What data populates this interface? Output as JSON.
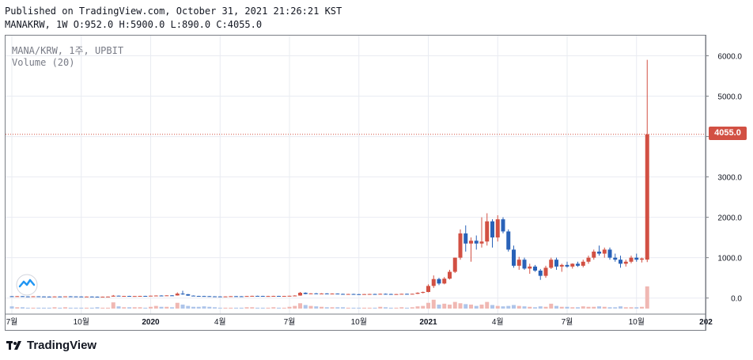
{
  "header": {
    "published": "Published on TradingView.com, October 31, 2021 21:26:21 KST",
    "ohlc": "MANAKRW, 1W O:952.0 H:5900.0 L:890.0 C:4055.0"
  },
  "legend": {
    "symbol": "MANA/KRW, 1주, UPBIT",
    "volume": "Volume (20)"
  },
  "brand": {
    "name": "TradingView"
  },
  "colors": {
    "up": "#d25043",
    "down": "#2962b8",
    "vol_up": "#f0b8b3",
    "vol_down": "#aec5ea",
    "grid": "#e9ecf2",
    "price_line": "#d25043"
  },
  "chart_data": {
    "type": "candlestick",
    "symbol": "MANA/KRW",
    "interval": "1W",
    "exchange": "UPBIT",
    "last_price": 4055.0,
    "last_price_label": "4055.0",
    "y_axis": {
      "ticks": [
        0.0,
        1000.0,
        2000.0,
        3000.0,
        4000.0,
        5000.0,
        6000.0
      ],
      "tick_labels": [
        "0.0",
        "1000.0",
        "2000.0",
        "3000.0",
        "4000.0",
        "5000.0",
        "6000.0"
      ],
      "range": [
        -300,
        6500
      ]
    },
    "x_axis": {
      "labels": [
        {
          "label": "7월",
          "week": 0,
          "bold": false
        },
        {
          "label": "10월",
          "week": 13,
          "bold": false
        },
        {
          "label": "2020",
          "week": 26,
          "bold": true
        },
        {
          "label": "4월",
          "week": 39,
          "bold": false
        },
        {
          "label": "7월",
          "week": 52,
          "bold": false
        },
        {
          "label": "10월",
          "week": 65,
          "bold": false
        },
        {
          "label": "2021",
          "week": 78,
          "bold": true
        },
        {
          "label": "4월",
          "week": 91,
          "bold": false
        },
        {
          "label": "7월",
          "week": 104,
          "bold": false
        },
        {
          "label": "10월",
          "week": 117,
          "bold": false
        },
        {
          "label": "202",
          "week": 130,
          "bold": true
        }
      ]
    },
    "candles": [
      [
        45,
        48,
        38,
        42,
        5
      ],
      [
        42,
        50,
        40,
        46,
        3
      ],
      [
        46,
        47,
        38,
        40,
        3
      ],
      [
        40,
        44,
        36,
        38,
        2
      ],
      [
        38,
        45,
        36,
        43,
        2
      ],
      [
        43,
        44,
        37,
        39,
        2
      ],
      [
        39,
        42,
        36,
        37,
        2
      ],
      [
        37,
        40,
        34,
        35,
        2
      ],
      [
        35,
        41,
        33,
        39,
        3
      ],
      [
        39,
        40,
        34,
        36,
        2
      ],
      [
        36,
        44,
        35,
        42,
        3
      ],
      [
        42,
        47,
        38,
        40,
        2
      ],
      [
        40,
        43,
        36,
        38,
        2
      ],
      [
        38,
        41,
        33,
        35,
        2
      ],
      [
        35,
        39,
        32,
        37,
        2
      ],
      [
        37,
        40,
        33,
        34,
        2
      ],
      [
        34,
        37,
        28,
        31,
        3
      ],
      [
        31,
        36,
        29,
        34,
        2
      ],
      [
        34,
        38,
        32,
        36,
        2
      ],
      [
        36,
        75,
        34,
        58,
        14
      ],
      [
        58,
        62,
        46,
        50,
        5
      ],
      [
        50,
        54,
        45,
        52,
        3
      ],
      [
        52,
        56,
        46,
        48,
        3
      ],
      [
        48,
        52,
        44,
        50,
        3
      ],
      [
        50,
        55,
        46,
        53,
        3
      ],
      [
        53,
        56,
        48,
        50,
        2
      ],
      [
        50,
        60,
        47,
        58,
        4
      ],
      [
        58,
        66,
        52,
        62,
        6
      ],
      [
        62,
        70,
        55,
        60,
        4
      ],
      [
        60,
        68,
        56,
        66,
        4
      ],
      [
        66,
        72,
        60,
        64,
        3
      ],
      [
        64,
        140,
        60,
        110,
        13
      ],
      [
        110,
        180,
        80,
        95,
        9
      ],
      [
        95,
        100,
        55,
        60,
        6
      ],
      [
        60,
        64,
        48,
        52,
        4
      ],
      [
        52,
        56,
        44,
        50,
        4
      ],
      [
        50,
        56,
        45,
        47,
        5
      ],
      [
        47,
        50,
        38,
        42,
        4
      ],
      [
        42,
        46,
        36,
        40,
        3
      ],
      [
        40,
        44,
        35,
        38,
        2
      ],
      [
        38,
        42,
        33,
        40,
        2
      ],
      [
        40,
        48,
        38,
        46,
        2
      ],
      [
        46,
        50,
        40,
        44,
        2
      ],
      [
        44,
        48,
        40,
        42,
        2
      ],
      [
        42,
        52,
        40,
        50,
        3
      ],
      [
        50,
        58,
        46,
        54,
        3
      ],
      [
        54,
        58,
        48,
        52,
        2
      ],
      [
        52,
        56,
        46,
        48,
        2
      ],
      [
        48,
        54,
        44,
        50,
        2
      ],
      [
        50,
        56,
        46,
        53,
        3
      ],
      [
        53,
        56,
        47,
        49,
        2
      ],
      [
        49,
        54,
        45,
        52,
        2
      ],
      [
        52,
        58,
        48,
        56,
        4
      ],
      [
        56,
        70,
        52,
        62,
        6
      ],
      [
        62,
        150,
        58,
        130,
        12
      ],
      [
        130,
        140,
        95,
        100,
        8
      ],
      [
        100,
        120,
        95,
        115,
        6
      ],
      [
        115,
        125,
        98,
        105,
        5
      ],
      [
        105,
        118,
        100,
        112,
        4
      ],
      [
        112,
        120,
        104,
        108,
        3
      ],
      [
        108,
        116,
        102,
        110,
        3
      ],
      [
        110,
        114,
        98,
        102,
        3
      ],
      [
        102,
        108,
        94,
        98,
        3
      ],
      [
        98,
        104,
        90,
        100,
        2
      ],
      [
        100,
        106,
        92,
        96,
        2
      ],
      [
        96,
        102,
        90,
        94,
        2
      ],
      [
        94,
        100,
        88,
        98,
        2
      ],
      [
        98,
        104,
        92,
        100,
        2
      ],
      [
        100,
        106,
        94,
        97,
        2
      ],
      [
        97,
        110,
        92,
        104,
        4
      ],
      [
        104,
        112,
        96,
        100,
        3
      ],
      [
        100,
        106,
        92,
        95,
        2
      ],
      [
        95,
        102,
        88,
        98,
        2
      ],
      [
        98,
        106,
        94,
        104,
        3
      ],
      [
        104,
        110,
        98,
        102,
        2
      ],
      [
        102,
        108,
        96,
        105,
        3
      ],
      [
        105,
        140,
        100,
        130,
        5
      ],
      [
        130,
        160,
        115,
        150,
        6
      ],
      [
        150,
        340,
        140,
        300,
        13
      ],
      [
        300,
        560,
        250,
        470,
        20
      ],
      [
        470,
        500,
        320,
        360,
        9
      ],
      [
        360,
        520,
        340,
        480,
        11
      ],
      [
        480,
        700,
        460,
        650,
        9
      ],
      [
        650,
        1000,
        620,
        1000,
        15
      ],
      [
        1000,
        1700,
        950,
        1600,
        12
      ],
      [
        1600,
        1800,
        1150,
        1350,
        10
      ],
      [
        1350,
        1500,
        900,
        1420,
        9
      ],
      [
        1420,
        1550,
        1200,
        1350,
        6
      ],
      [
        1350,
        2000,
        1250,
        1400,
        9
      ],
      [
        1400,
        2100,
        1300,
        1900,
        15
      ],
      [
        1900,
        1950,
        1250,
        1500,
        8
      ],
      [
        1500,
        2050,
        1400,
        1950,
        6
      ],
      [
        1950,
        2000,
        1600,
        1650,
        5
      ],
      [
        1650,
        1700,
        1150,
        1200,
        6
      ],
      [
        1200,
        1300,
        750,
        800,
        8
      ],
      [
        800,
        1020,
        700,
        950,
        6
      ],
      [
        950,
        1000,
        700,
        730,
        5
      ],
      [
        730,
        850,
        600,
        780,
        4
      ],
      [
        780,
        820,
        650,
        680,
        3
      ],
      [
        680,
        720,
        450,
        550,
        5
      ],
      [
        550,
        800,
        500,
        750,
        4
      ],
      [
        750,
        1000,
        720,
        950,
        11
      ],
      [
        950,
        1000,
        700,
        780,
        6
      ],
      [
        780,
        850,
        650,
        820,
        4
      ],
      [
        820,
        900,
        750,
        780,
        4
      ],
      [
        780,
        860,
        730,
        850,
        3
      ],
      [
        850,
        900,
        770,
        800,
        3
      ],
      [
        800,
        950,
        760,
        900,
        5
      ],
      [
        900,
        1050,
        850,
        1000,
        4
      ],
      [
        1000,
        1200,
        950,
        1150,
        4
      ],
      [
        1150,
        1300,
        1050,
        1100,
        5
      ],
      [
        1100,
        1250,
        1000,
        1200,
        4
      ],
      [
        1200,
        1250,
        950,
        1000,
        3
      ],
      [
        1000,
        1100,
        900,
        950,
        3
      ],
      [
        950,
        1050,
        750,
        850,
        5
      ],
      [
        850,
        950,
        780,
        900,
        3
      ],
      [
        900,
        1050,
        860,
        1000,
        3
      ],
      [
        1000,
        1100,
        900,
        950,
        3
      ],
      [
        950,
        1000,
        880,
        980,
        4
      ],
      [
        952,
        5900,
        890,
        4055,
        50
      ]
    ]
  }
}
